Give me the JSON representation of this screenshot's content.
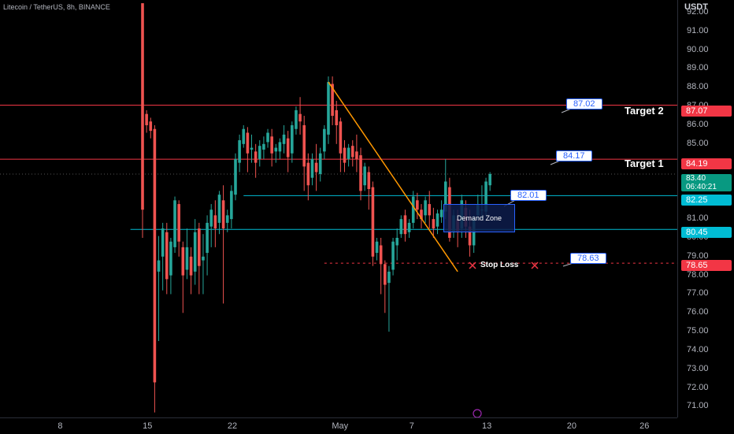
{
  "symbol": "Litecoin / TetherUS, 8h, BINANCE",
  "currency": "USDT",
  "price_ticks": [
    "92.00",
    "91.00",
    "90.00",
    "89.00",
    "88.00",
    "87.00",
    "86.00",
    "85.00",
    "84.00",
    "83.00",
    "82.00",
    "81.00",
    "80.00",
    "79.00",
    "78.00",
    "77.00",
    "76.00",
    "75.00",
    "74.00",
    "73.00",
    "72.00",
    "71.00"
  ],
  "time_labels": [
    "8",
    "15",
    "22",
    "May",
    "7",
    "13",
    "20",
    "26"
  ],
  "price_labels": {
    "target2": "87.07",
    "target1": "84.19",
    "current": "83.40",
    "countdown": "06:40:21",
    "zone_top": "82.25",
    "zone_bottom": "80.45",
    "stop": "78.65"
  },
  "annotations": {
    "target2_label": "Target 2",
    "target1_label": "Target 1",
    "callout_target2": "87.02",
    "callout_target1": "84.17",
    "callout_zone": "82.01",
    "callout_stop": "78.63",
    "demand_zone": "Demand Zone",
    "stop_loss": "Stop Loss"
  },
  "colors": {
    "up": "#26a69a",
    "down": "#ef5350",
    "target_line": "#f23645",
    "zone_line": "#00bcd4",
    "trend_line": "#ff9800",
    "stop_line": "#f23645"
  },
  "chart_data": {
    "type": "candlestick",
    "ylim": [
      70.5,
      92.5
    ],
    "x_ticks": [
      {
        "label": "8",
        "index": -20
      },
      {
        "label": "15",
        "index": 1
      },
      {
        "label": "22",
        "index": 22
      },
      {
        "label": "May",
        "index": 49
      },
      {
        "label": "7",
        "index": 67
      },
      {
        "label": "13",
        "index": 85
      },
      {
        "label": "20",
        "index": 106
      },
      {
        "label": "26",
        "index": 124
      }
    ],
    "candles": [
      {
        "o": 92.5,
        "h": 92.5,
        "c": 81.5,
        "l": 80.0
      },
      {
        "o": 86.6,
        "h": 86.8,
        "c": 86.0,
        "l": 85.6
      },
      {
        "o": 86.2,
        "h": 86.4,
        "c": 85.7,
        "l": 85.3
      },
      {
        "o": 85.8,
        "h": 86.0,
        "c": 72.3,
        "l": 70.7
      },
      {
        "o": 78.2,
        "h": 80.1,
        "c": 78.8,
        "l": 74.5
      },
      {
        "o": 79.0,
        "h": 80.8,
        "c": 80.5,
        "l": 77.2
      },
      {
        "o": 80.3,
        "h": 80.8,
        "c": 77.8,
        "l": 77.0
      },
      {
        "o": 78.0,
        "h": 80.0,
        "c": 79.8,
        "l": 77.0
      },
      {
        "o": 79.5,
        "h": 82.2,
        "c": 82.0,
        "l": 79.2
      },
      {
        "o": 81.8,
        "h": 82.0,
        "c": 79.8,
        "l": 79.0
      },
      {
        "o": 79.5,
        "h": 79.8,
        "c": 78.0,
        "l": 76.0
      },
      {
        "o": 78.3,
        "h": 80.5,
        "c": 79.5,
        "l": 77.8
      },
      {
        "o": 79.0,
        "h": 79.5,
        "c": 78.0,
        "l": 77.0
      },
      {
        "o": 78.2,
        "h": 81.0,
        "c": 80.3,
        "l": 77.5
      },
      {
        "o": 80.5,
        "h": 80.8,
        "c": 78.5,
        "l": 77.0
      },
      {
        "o": 78.8,
        "h": 80.2,
        "c": 79.0,
        "l": 77.0
      },
      {
        "o": 79.2,
        "h": 81.2,
        "c": 80.8,
        "l": 78.0
      },
      {
        "o": 80.6,
        "h": 81.8,
        "c": 81.5,
        "l": 79.5
      },
      {
        "o": 81.2,
        "h": 82.0,
        "c": 80.5,
        "l": 79.5
      },
      {
        "o": 80.8,
        "h": 82.5,
        "c": 82.3,
        "l": 80.2
      },
      {
        "o": 82.0,
        "h": 82.8,
        "c": 80.5,
        "l": 76.5
      },
      {
        "o": 80.8,
        "h": 81.5,
        "c": 81.2,
        "l": 80.3
      },
      {
        "o": 81.0,
        "h": 82.8,
        "c": 82.5,
        "l": 80.5
      },
      {
        "o": 82.3,
        "h": 84.5,
        "c": 84.2,
        "l": 82.0
      },
      {
        "o": 84.0,
        "h": 85.5,
        "c": 85.2,
        "l": 83.5
      },
      {
        "o": 85.0,
        "h": 86.0,
        "c": 85.8,
        "l": 84.8
      },
      {
        "o": 85.6,
        "h": 85.9,
        "c": 84.5,
        "l": 83.5
      },
      {
        "o": 84.7,
        "h": 85.5,
        "c": 84.8,
        "l": 84.0
      },
      {
        "o": 84.6,
        "h": 85.0,
        "c": 84.0,
        "l": 83.2
      },
      {
        "o": 84.2,
        "h": 85.2,
        "c": 84.9,
        "l": 83.8
      },
      {
        "o": 84.7,
        "h": 85.4,
        "c": 85.0,
        "l": 84.2
      },
      {
        "o": 85.1,
        "h": 85.8,
        "c": 85.6,
        "l": 84.8
      },
      {
        "o": 85.4,
        "h": 85.8,
        "c": 84.5,
        "l": 83.8
      },
      {
        "o": 84.6,
        "h": 85.0,
        "c": 84.8,
        "l": 84.0
      },
      {
        "o": 84.6,
        "h": 85.3,
        "c": 85.1,
        "l": 84.2
      },
      {
        "o": 85.0,
        "h": 86.0,
        "c": 85.5,
        "l": 84.5
      },
      {
        "o": 85.3,
        "h": 85.7,
        "c": 84.3,
        "l": 83.5
      },
      {
        "o": 84.5,
        "h": 86.2,
        "c": 86.0,
        "l": 84.0
      },
      {
        "o": 85.8,
        "h": 87.0,
        "c": 86.8,
        "l": 85.5
      },
      {
        "o": 86.6,
        "h": 87.5,
        "c": 86.2,
        "l": 85.5
      },
      {
        "o": 86.0,
        "h": 86.5,
        "c": 83.8,
        "l": 82.5
      },
      {
        "o": 84.0,
        "h": 84.5,
        "c": 82.8,
        "l": 82.0
      },
      {
        "o": 83.2,
        "h": 84.5,
        "c": 84.2,
        "l": 82.8
      },
      {
        "o": 84.0,
        "h": 85.0,
        "c": 83.5,
        "l": 82.5
      },
      {
        "o": 83.4,
        "h": 84.8,
        "c": 84.5,
        "l": 83.0
      },
      {
        "o": 84.6,
        "h": 86.0,
        "c": 85.8,
        "l": 84.2
      },
      {
        "o": 85.5,
        "h": 88.6,
        "c": 88.3,
        "l": 85.0
      },
      {
        "o": 88.2,
        "h": 88.6,
        "c": 86.5,
        "l": 86.0
      },
      {
        "o": 86.8,
        "h": 87.3,
        "c": 86.0,
        "l": 85.0
      },
      {
        "o": 86.2,
        "h": 86.4,
        "c": 84.5,
        "l": 83.5
      },
      {
        "o": 84.8,
        "h": 85.2,
        "c": 84.0,
        "l": 83.5
      },
      {
        "o": 84.2,
        "h": 85.0,
        "c": 84.8,
        "l": 83.8
      },
      {
        "o": 84.9,
        "h": 85.2,
        "c": 84.3,
        "l": 83.8
      },
      {
        "o": 84.6,
        "h": 85.5,
        "c": 84.2,
        "l": 83.5
      },
      {
        "o": 84.4,
        "h": 84.8,
        "c": 82.5,
        "l": 82.0
      },
      {
        "o": 82.8,
        "h": 84.0,
        "c": 83.8,
        "l": 82.5
      },
      {
        "o": 83.5,
        "h": 83.8,
        "c": 82.6,
        "l": 81.5
      },
      {
        "o": 82.7,
        "h": 83.0,
        "c": 79.0,
        "l": 78.5
      },
      {
        "o": 79.2,
        "h": 80.0,
        "c": 79.8,
        "l": 78.8
      },
      {
        "o": 79.6,
        "h": 80.0,
        "c": 78.6,
        "l": 77.0
      },
      {
        "o": 78.6,
        "h": 78.8,
        "c": 77.5,
        "l": 76.0
      },
      {
        "o": 77.6,
        "h": 78.5,
        "c": 78.2,
        "l": 75.0
      },
      {
        "o": 78.3,
        "h": 80.0,
        "c": 79.8,
        "l": 78.0
      },
      {
        "o": 79.6,
        "h": 80.5,
        "c": 80.0,
        "l": 78.8
      },
      {
        "o": 80.2,
        "h": 81.2,
        "c": 81.0,
        "l": 80.0
      },
      {
        "o": 81.2,
        "h": 81.5,
        "c": 80.2,
        "l": 79.8
      },
      {
        "o": 80.3,
        "h": 81.0,
        "c": 80.8,
        "l": 80.0
      },
      {
        "o": 80.8,
        "h": 82.5,
        "c": 82.2,
        "l": 80.5
      },
      {
        "o": 82.0,
        "h": 82.4,
        "c": 81.5,
        "l": 81.0
      },
      {
        "o": 81.5,
        "h": 81.8,
        "c": 81.0,
        "l": 80.5
      },
      {
        "o": 81.2,
        "h": 82.2,
        "c": 82.0,
        "l": 80.8
      },
      {
        "o": 81.8,
        "h": 82.5,
        "c": 81.2,
        "l": 80.5
      },
      {
        "o": 81.0,
        "h": 81.6,
        "c": 80.5,
        "l": 80.0
      },
      {
        "o": 80.6,
        "h": 81.5,
        "c": 81.3,
        "l": 80.2
      },
      {
        "o": 81.1,
        "h": 82.0,
        "c": 81.5,
        "l": 80.8
      },
      {
        "o": 81.4,
        "h": 84.2,
        "c": 83.0,
        "l": 81.0
      },
      {
        "o": 82.7,
        "h": 83.2,
        "c": 80.0,
        "l": 79.8
      },
      {
        "o": 80.3,
        "h": 81.5,
        "c": 81.2,
        "l": 80.0
      },
      {
        "o": 81.0,
        "h": 81.5,
        "c": 80.3,
        "l": 79.5
      },
      {
        "o": 80.5,
        "h": 82.3,
        "c": 82.0,
        "l": 80.0
      },
      {
        "o": 81.6,
        "h": 82.0,
        "c": 80.6,
        "l": 80.0
      },
      {
        "o": 80.6,
        "h": 81.5,
        "c": 79.6,
        "l": 79.0
      },
      {
        "o": 79.6,
        "h": 81.2,
        "c": 81.0,
        "l": 79.2
      },
      {
        "o": 81.2,
        "h": 82.3,
        "c": 81.8,
        "l": 81.0
      },
      {
        "o": 81.5,
        "h": 82.8,
        "c": 81.5,
        "l": 81.0
      },
      {
        "o": 81.4,
        "h": 83.2,
        "c": 83.0,
        "l": 81.2
      },
      {
        "o": 82.8,
        "h": 83.5,
        "c": 83.4,
        "l": 82.5
      }
    ],
    "trendline": [
      {
        "index": 46,
        "price": 88.3
      },
      {
        "index": 78,
        "price": 78.2
      }
    ],
    "levels": [
      {
        "name": "Target 2",
        "price": 87.07,
        "from": -40,
        "to": 134
      },
      {
        "name": "Target 1",
        "price": 84.19,
        "from": -40,
        "to": 134
      },
      {
        "name": "zone_top",
        "price": 82.25,
        "from": 25,
        "to": 134
      },
      {
        "name": "zone_bottom",
        "price": 80.45,
        "from": -3,
        "to": 134
      },
      {
        "name": "Stop Loss",
        "price": 78.65,
        "from": 45,
        "to": 134
      }
    ]
  }
}
